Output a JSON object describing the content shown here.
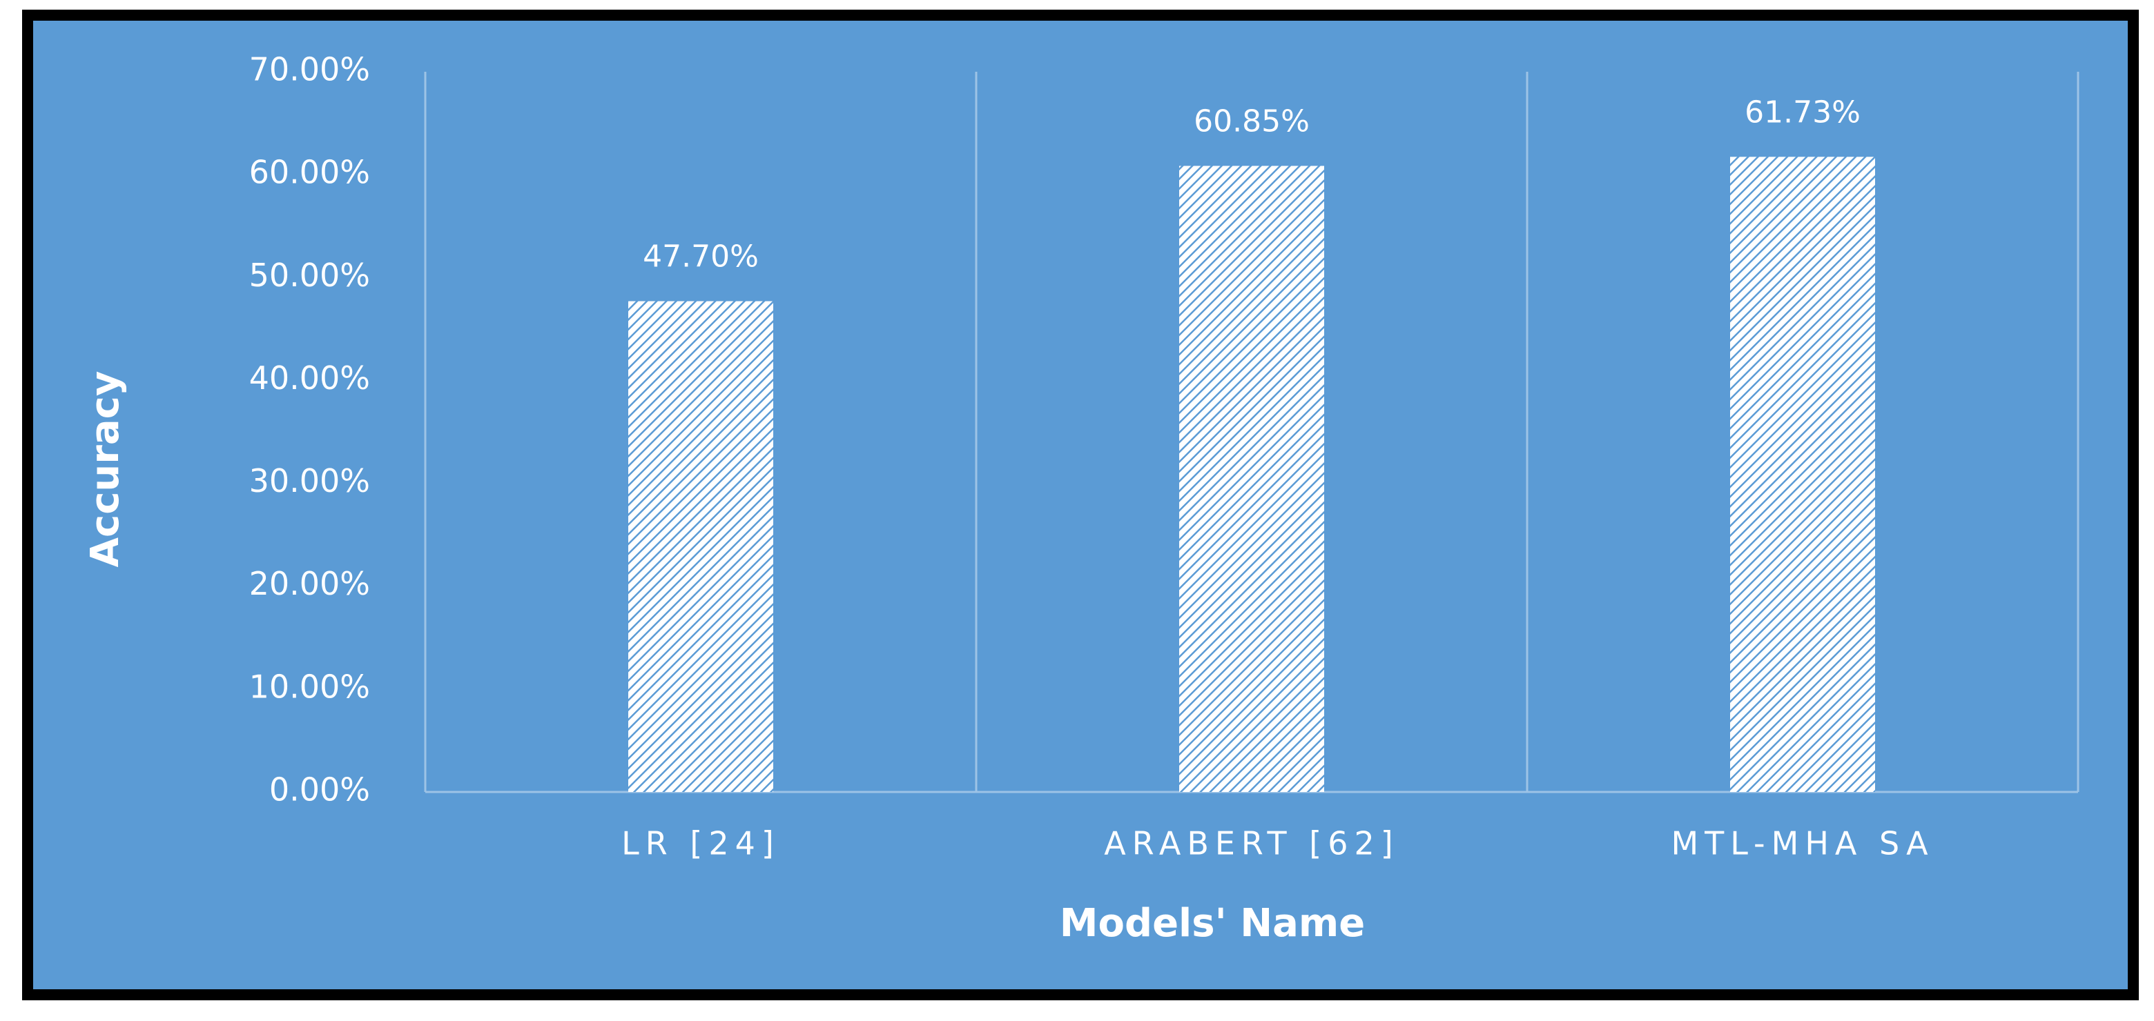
{
  "chart_data": {
    "type": "bar",
    "x_label": "Models' Name",
    "y_label": "Accuracy",
    "categories": [
      "LR [24]",
      "ARABERT [62]",
      "MTL-MHA SA"
    ],
    "values": [
      47.7,
      60.85,
      61.73
    ],
    "value_labels": [
      "47.70%",
      "60.85%",
      "61.73%"
    ],
    "color": "#ffffff",
    "ylim": [
      0,
      70
    ],
    "yticks": [
      {
        "value": 0,
        "label": "0.00%"
      },
      {
        "value": 10,
        "label": "10.00%"
      },
      {
        "value": 20,
        "label": "20.00%"
      },
      {
        "value": 30,
        "label": "30.00%"
      },
      {
        "value": 40,
        "label": "40.00%"
      },
      {
        "value": 50,
        "label": "50.00%"
      },
      {
        "value": 60,
        "label": "60.00%"
      },
      {
        "value": 70,
        "label": "70.00%"
      }
    ],
    "grid": true
  }
}
